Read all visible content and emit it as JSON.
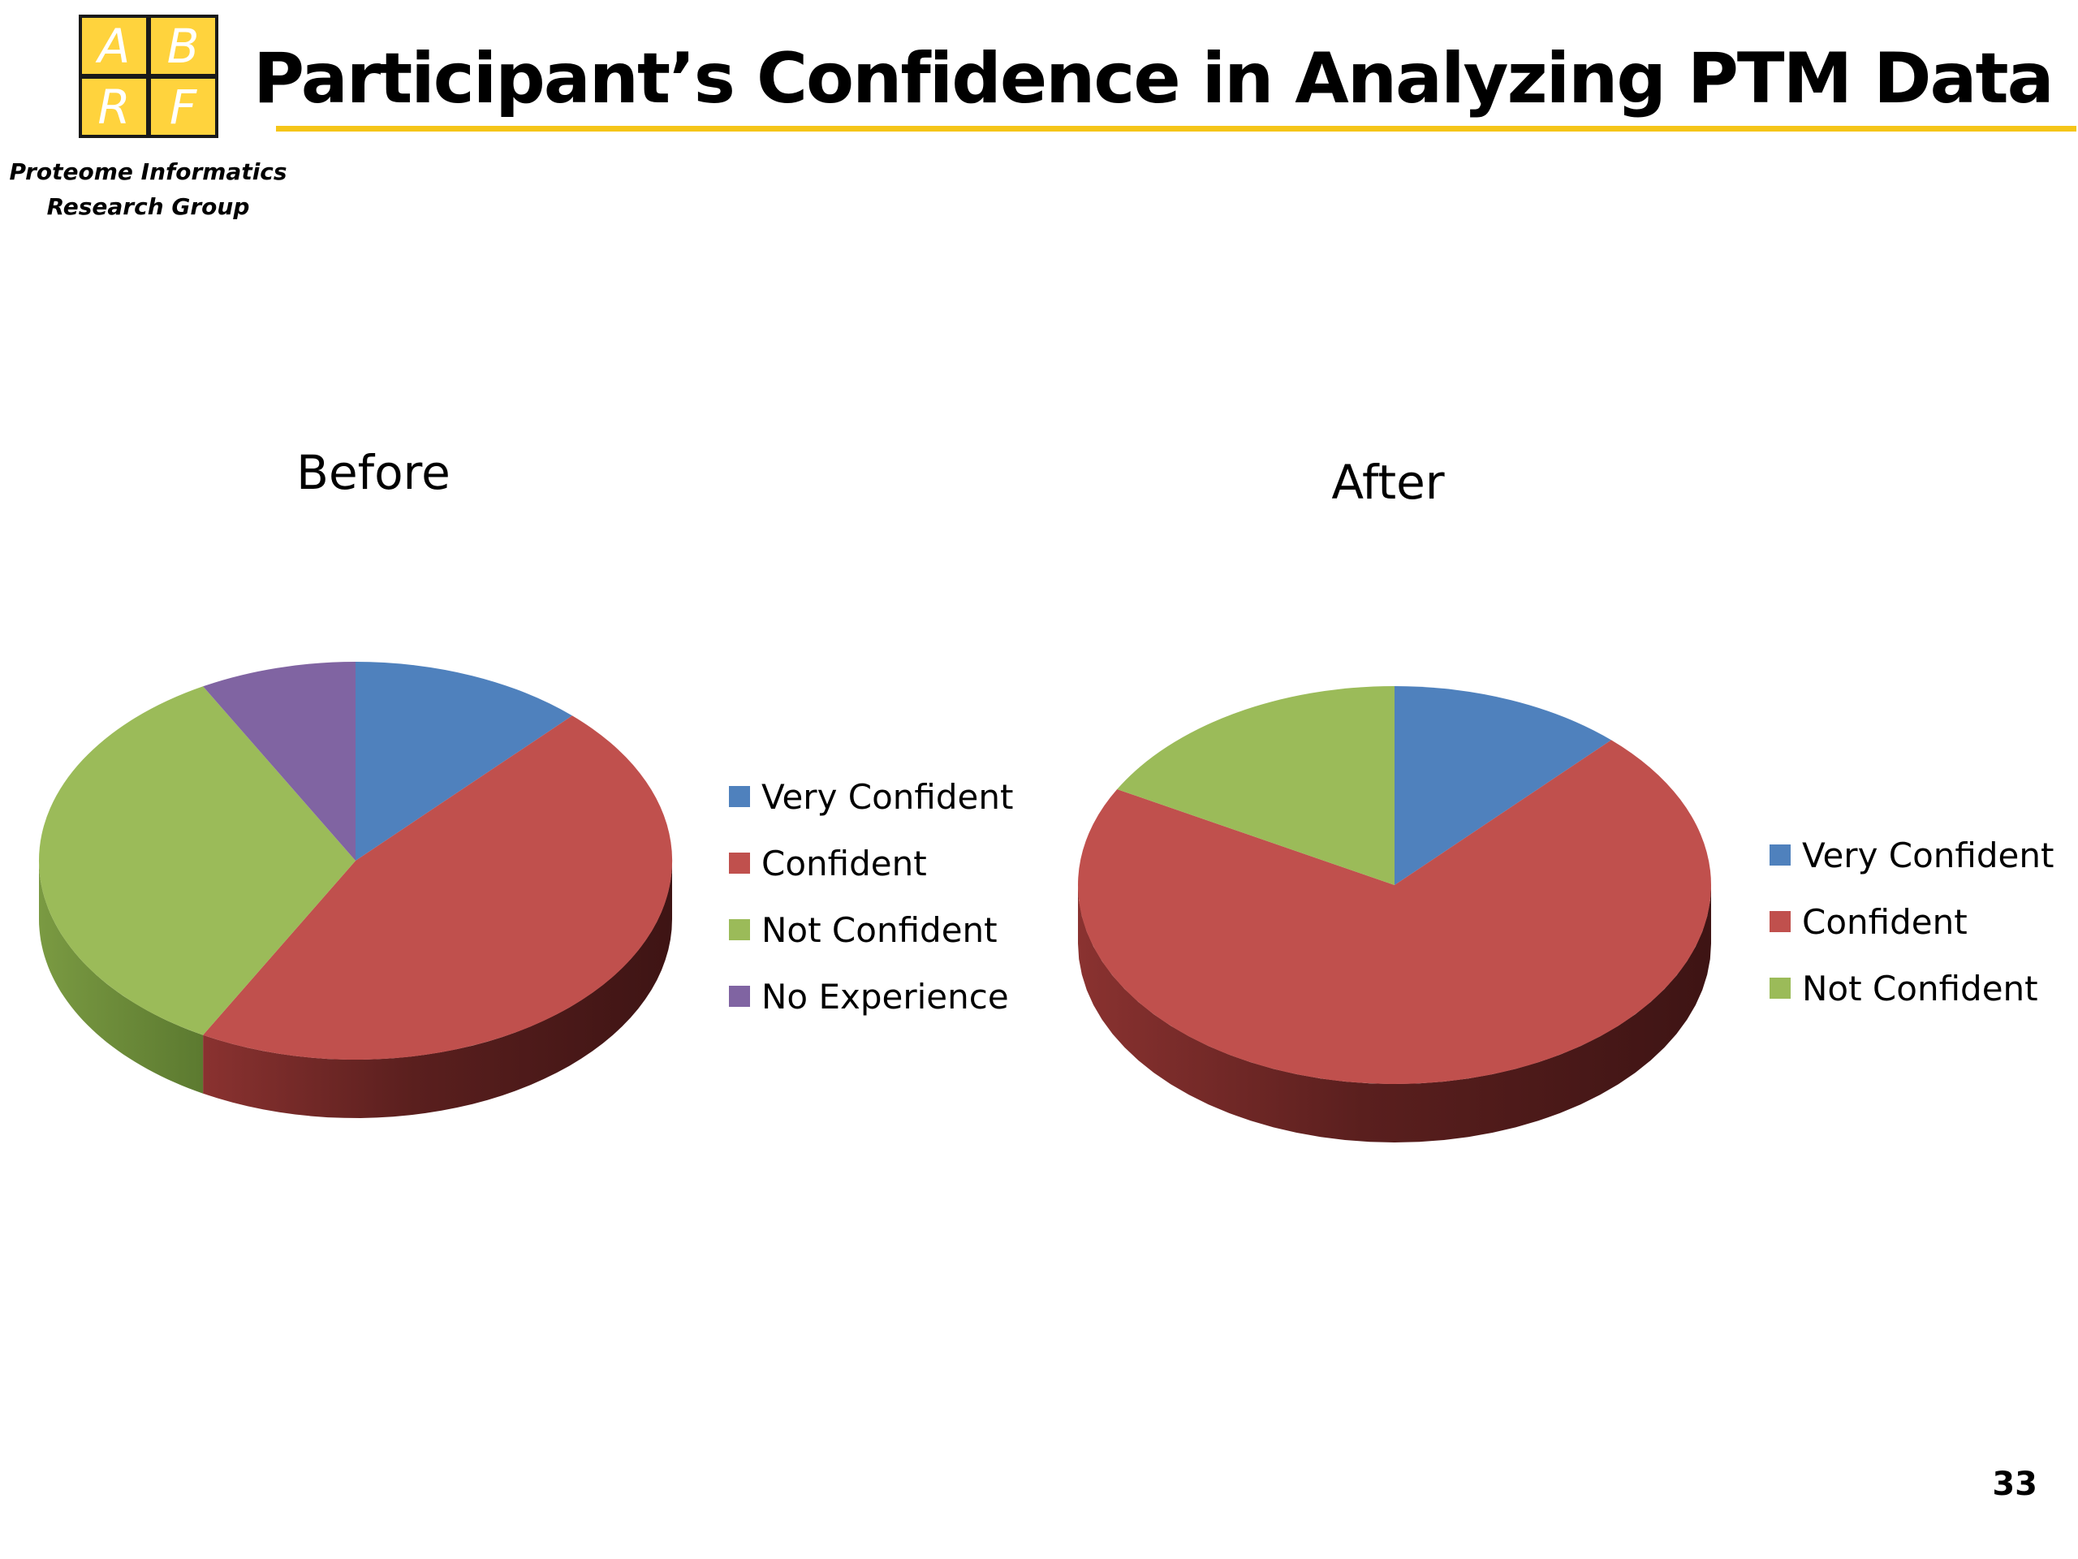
{
  "logo": {
    "letters": [
      "A",
      "B",
      "R",
      "F"
    ],
    "org_line1": "Proteome Informatics",
    "org_line2": "Research Group",
    "fill_color": "#ffd33d"
  },
  "title": "Participant’s Confidence in Analyzing PTM Data",
  "page_number": "33",
  "chart_data": [
    {
      "type": "pie",
      "title": "Before",
      "categories": [
        "Very Confident",
        "Confident",
        "Not Confident",
        "No Experience"
      ],
      "values": [
        12,
        46,
        34,
        8
      ],
      "colors": [
        "#4f81bd",
        "#c0504d",
        "#9bbb59",
        "#8064a2"
      ],
      "legend_position": "right",
      "style": "3d"
    },
    {
      "type": "pie",
      "title": "After",
      "categories": [
        "Very Confident",
        "Confident",
        "Not Confident"
      ],
      "values": [
        12,
        71,
        17
      ],
      "colors": [
        "#4f81bd",
        "#c0504d",
        "#9bbb59"
      ],
      "legend_position": "right",
      "style": "3d"
    }
  ]
}
